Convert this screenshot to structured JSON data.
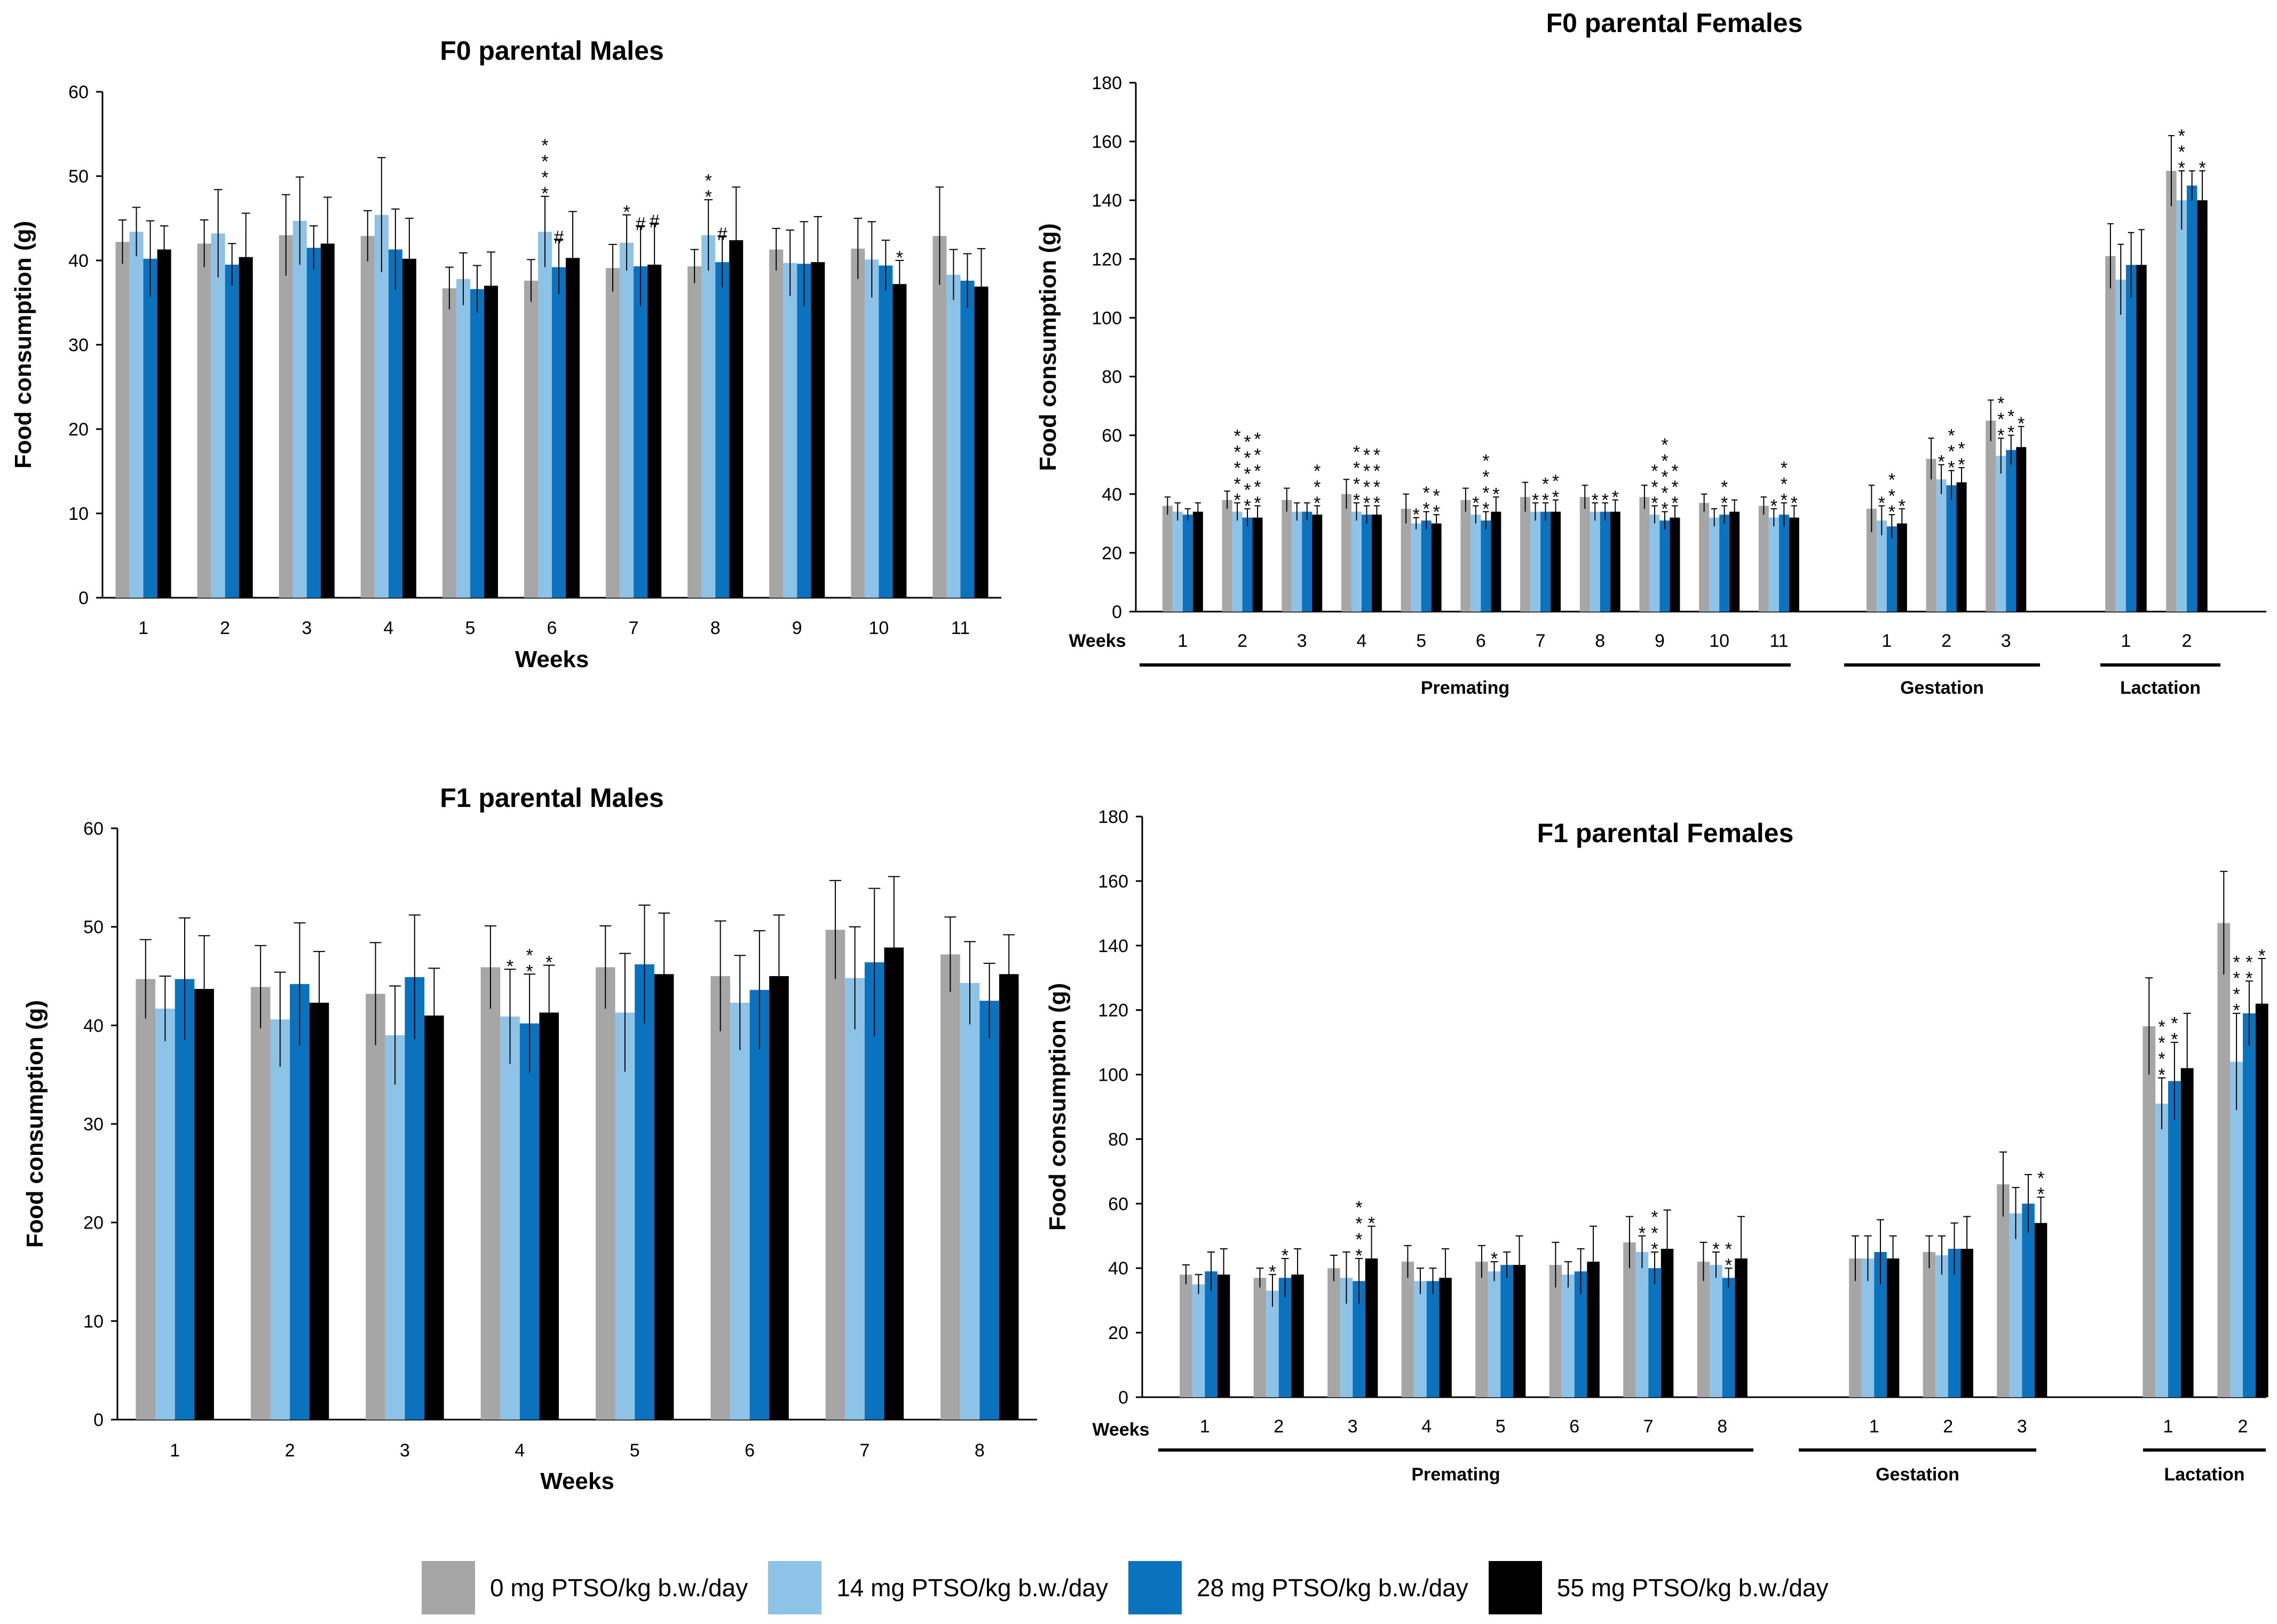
{
  "legend": [
    {
      "label": "0 mg PTSO/kg b.w./day",
      "color": "#A6A6A6"
    },
    {
      "label": "14 mg PTSO/kg b.w./day",
      "color": "#8EC3E8"
    },
    {
      "label": "28 mg PTSO/kg b.w./day",
      "color": "#0B73BD"
    },
    {
      "label": "55 mg PTSO/kg b.w./day",
      "color": "#000000"
    }
  ],
  "chart_data": [
    {
      "type": "bar",
      "title": "F0 parental Males",
      "ylabel": "Food consumption (g)",
      "xlabel": "Weeks",
      "ylim": [
        0,
        60
      ],
      "yticks": [
        0,
        10,
        20,
        30,
        40,
        50,
        60
      ],
      "categories": [
        "1",
        "2",
        "3",
        "4",
        "5",
        "6",
        "7",
        "8",
        "9",
        "10",
        "11"
      ],
      "series": [
        {
          "values": [
            42.2,
            42.0,
            43.0,
            42.9,
            36.7,
            37.6,
            39.1,
            39.3,
            41.3,
            41.4,
            42.9
          ],
          "errors": [
            2.6,
            2.8,
            4.8,
            3.0,
            2.5,
            2.5,
            2.8,
            2.0,
            2.5,
            3.6,
            5.8
          ]
        },
        {
          "values": [
            43.4,
            43.2,
            44.7,
            45.4,
            37.8,
            43.4,
            42.1,
            43.0,
            39.7,
            40.1,
            38.3
          ],
          "errors": [
            2.9,
            5.2,
            5.2,
            6.8,
            3.1,
            4.2,
            3.3,
            4.2,
            3.9,
            4.5,
            3.0
          ]
        },
        {
          "values": [
            40.2,
            39.5,
            41.5,
            41.3,
            36.6,
            39.2,
            39.3,
            39.8,
            39.6,
            39.4,
            37.6
          ],
          "errors": [
            4.5,
            2.5,
            2.6,
            4.8,
            2.8,
            3.2,
            4.7,
            3.0,
            5.0,
            3.0,
            3.2
          ]
        },
        {
          "values": [
            41.3,
            40.4,
            42.0,
            40.2,
            37.0,
            40.3,
            39.5,
            42.4,
            39.8,
            37.2,
            36.9
          ],
          "errors": [
            2.8,
            5.2,
            5.5,
            4.8,
            4.0,
            5.5,
            4.8,
            6.3,
            5.4,
            2.8,
            4.5
          ]
        }
      ],
      "annotations": [
        {
          "category": "6",
          "series": 1,
          "marks": [
            "*",
            "*",
            "*",
            "*"
          ]
        },
        {
          "category": "6",
          "series": 2,
          "marks": [
            "#"
          ]
        },
        {
          "category": "7",
          "series": 1,
          "marks": [
            "*"
          ]
        },
        {
          "category": "7",
          "series": 2,
          "marks": [
            "#"
          ]
        },
        {
          "category": "7",
          "series": 3,
          "marks": [
            "#"
          ]
        },
        {
          "category": "8",
          "series": 1,
          "marks": [
            "*",
            "*"
          ]
        },
        {
          "category": "8",
          "series": 2,
          "marks": [
            "#"
          ]
        },
        {
          "category": "10",
          "series": 3,
          "marks": [
            "*"
          ]
        }
      ]
    },
    {
      "type": "bar",
      "title": "F0 parental Females",
      "ylabel": "Food consumption (g)",
      "ylim": [
        0,
        180
      ],
      "yticks": [
        0,
        20,
        40,
        60,
        80,
        100,
        120,
        140,
        160,
        180
      ],
      "weeks_label": "Weeks",
      "groups": [
        {
          "label": "Premating",
          "categories": [
            "1",
            "2",
            "3",
            "4",
            "5",
            "6",
            "7",
            "8",
            "9",
            "10",
            "11"
          ]
        },
        {
          "label": "Gestation",
          "categories": [
            "1",
            "2",
            "3"
          ]
        },
        {
          "label": "Lactation",
          "categories": [
            "1",
            "2"
          ]
        }
      ],
      "series": [
        {
          "values": [
            36,
            38,
            38,
            40,
            35,
            38,
            39,
            39,
            39,
            37,
            36,
            35,
            52,
            65,
            121,
            150
          ],
          "errors": [
            3,
            3,
            4,
            5,
            5,
            4,
            5,
            4,
            4,
            3,
            3,
            8,
            7,
            7,
            11,
            12
          ]
        },
        {
          "values": [
            34,
            34,
            34,
            34,
            30,
            33,
            34,
            34,
            33,
            32,
            32,
            31,
            45,
            53,
            113,
            140
          ],
          "errors": [
            3,
            3,
            3,
            3,
            2,
            3,
            3,
            3,
            3,
            3,
            3,
            5,
            5,
            6,
            12,
            10
          ]
        },
        {
          "values": [
            33,
            32,
            34,
            33,
            31,
            31,
            34,
            34,
            31,
            33,
            33,
            29,
            43,
            55,
            118,
            145
          ],
          "errors": [
            2,
            3,
            3,
            3,
            3,
            3,
            3,
            3,
            3,
            3,
            4,
            4,
            5,
            5,
            11,
            5
          ]
        },
        {
          "values": [
            34,
            32,
            33,
            33,
            30,
            34,
            34,
            34,
            32,
            34,
            32,
            30,
            44,
            56,
            118,
            140
          ],
          "errors": [
            3,
            4,
            3,
            3,
            3,
            5,
            4,
            4,
            4,
            4,
            4,
            5,
            5,
            7,
            12,
            10
          ]
        }
      ],
      "annotations": [
        {
          "index": 1,
          "series": 1,
          "marks": [
            "*",
            "*",
            "*",
            "*",
            "*"
          ]
        },
        {
          "index": 1,
          "series": 2,
          "marks": [
            "*",
            "*",
            "*",
            "*",
            "*"
          ]
        },
        {
          "index": 1,
          "series": 3,
          "marks": [
            "*",
            "*",
            "*",
            "*",
            "*"
          ]
        },
        {
          "index": 2,
          "series": 3,
          "marks": [
            "*",
            "*",
            "*"
          ]
        },
        {
          "index": 3,
          "series": 1,
          "marks": [
            "*",
            "*",
            "*",
            "*"
          ]
        },
        {
          "index": 3,
          "series": 2,
          "marks": [
            "*",
            "*",
            "*",
            "*"
          ]
        },
        {
          "index": 3,
          "series": 3,
          "marks": [
            "*",
            "*",
            "*",
            "*"
          ]
        },
        {
          "index": 4,
          "series": 1,
          "marks": [
            "*"
          ]
        },
        {
          "index": 4,
          "series": 2,
          "marks": [
            "*",
            "*"
          ]
        },
        {
          "index": 4,
          "series": 3,
          "marks": [
            "*",
            "*"
          ]
        },
        {
          "index": 5,
          "series": 1,
          "marks": [
            "*"
          ]
        },
        {
          "index": 5,
          "series": 2,
          "marks": [
            "*",
            "*",
            "*",
            "*"
          ]
        },
        {
          "index": 5,
          "series": 3,
          "marks": [
            "*"
          ]
        },
        {
          "index": 6,
          "series": 1,
          "marks": [
            "*"
          ]
        },
        {
          "index": 6,
          "series": 2,
          "marks": [
            "*",
            "*"
          ]
        },
        {
          "index": 6,
          "series": 3,
          "marks": [
            "*",
            "*"
          ]
        },
        {
          "index": 7,
          "series": 1,
          "marks": [
            "*"
          ]
        },
        {
          "index": 7,
          "series": 2,
          "marks": [
            "*"
          ]
        },
        {
          "index": 7,
          "series": 3,
          "marks": [
            "*"
          ]
        },
        {
          "index": 8,
          "series": 1,
          "marks": [
            "*",
            "*",
            "*"
          ]
        },
        {
          "index": 8,
          "series": 2,
          "marks": [
            "*",
            "*",
            "*",
            "*",
            "*"
          ]
        },
        {
          "index": 8,
          "series": 3,
          "marks": [
            "*",
            "*",
            "*"
          ]
        },
        {
          "index": 9,
          "series": 2,
          "marks": [
            "*",
            "*"
          ]
        },
        {
          "index": 10,
          "series": 1,
          "marks": [
            "*"
          ]
        },
        {
          "index": 10,
          "series": 2,
          "marks": [
            "*",
            "*",
            "*"
          ]
        },
        {
          "index": 10,
          "series": 3,
          "marks": [
            "*"
          ]
        },
        {
          "index": 11,
          "series": 1,
          "marks": [
            "*"
          ]
        },
        {
          "index": 11,
          "series": 2,
          "marks": [
            "*",
            "*",
            "*"
          ]
        },
        {
          "index": 11,
          "series": 3,
          "marks": [
            "*"
          ]
        },
        {
          "index": 12,
          "series": 1,
          "marks": [
            "*"
          ]
        },
        {
          "index": 12,
          "series": 2,
          "marks": [
            "*",
            "*",
            "*"
          ]
        },
        {
          "index": 12,
          "series": 3,
          "marks": [
            "*",
            "*"
          ]
        },
        {
          "index": 13,
          "series": 1,
          "marks": [
            "*",
            "*",
            "*"
          ]
        },
        {
          "index": 13,
          "series": 2,
          "marks": [
            "*",
            "*"
          ]
        },
        {
          "index": 13,
          "series": 3,
          "marks": [
            "*"
          ]
        },
        {
          "index": 15,
          "series": 1,
          "marks": [
            "*",
            "*",
            "*"
          ]
        },
        {
          "index": 15,
          "series": 3,
          "marks": [
            "*"
          ]
        }
      ]
    },
    {
      "type": "bar",
      "title": "F1 parental Males",
      "ylabel": "Food consumption (g)",
      "xlabel": "Weeks",
      "ylim": [
        0,
        60
      ],
      "yticks": [
        0,
        10,
        20,
        30,
        40,
        50,
        60
      ],
      "categories": [
        "1",
        "2",
        "3",
        "4",
        "5",
        "6",
        "7",
        "8"
      ],
      "series": [
        {
          "values": [
            44.7,
            43.9,
            43.2,
            45.9,
            45.9,
            45.0,
            49.7,
            47.2
          ],
          "errors": [
            4.0,
            4.2,
            5.2,
            4.2,
            4.2,
            5.6,
            5.0,
            3.8
          ]
        },
        {
          "values": [
            41.7,
            40.6,
            39.0,
            40.9,
            41.3,
            42.3,
            44.8,
            44.3
          ],
          "errors": [
            3.3,
            4.8,
            5.0,
            4.8,
            6.0,
            4.8,
            5.2,
            4.2
          ]
        },
        {
          "values": [
            44.7,
            44.2,
            44.9,
            40.2,
            46.2,
            43.6,
            46.4,
            42.5
          ],
          "errors": [
            6.2,
            6.2,
            6.3,
            5.0,
            6.0,
            6.0,
            7.5,
            3.8
          ]
        },
        {
          "values": [
            43.7,
            42.3,
            41.0,
            41.3,
            45.2,
            45.0,
            47.9,
            45.2
          ],
          "errors": [
            5.4,
            5.2,
            4.8,
            4.8,
            6.2,
            6.2,
            7.2,
            4.0
          ]
        }
      ],
      "annotations": [
        {
          "category": "4",
          "series": 1,
          "marks": [
            "*"
          ]
        },
        {
          "category": "4",
          "series": 2,
          "marks": [
            "*",
            "*"
          ]
        },
        {
          "category": "4",
          "series": 3,
          "marks": [
            "*"
          ]
        }
      ]
    },
    {
      "type": "bar",
      "title": "F1 parental Females",
      "ylabel": "Food consumption (g)",
      "ylim": [
        0,
        180
      ],
      "yticks": [
        0,
        20,
        40,
        60,
        80,
        100,
        120,
        140,
        160,
        180
      ],
      "weeks_label": "Weeks",
      "groups": [
        {
          "label": "Premating",
          "categories": [
            "1",
            "2",
            "3",
            "4",
            "5",
            "6",
            "7",
            "8"
          ]
        },
        {
          "label": "Gestation",
          "categories": [
            "1",
            "2",
            "3"
          ]
        },
        {
          "label": "Lactation",
          "categories": [
            "1",
            "2"
          ]
        }
      ],
      "series": [
        {
          "values": [
            38,
            37,
            40,
            42,
            42,
            41,
            48,
            42,
            43,
            45,
            66,
            115,
            147
          ],
          "errors": [
            3,
            3,
            4,
            5,
            5,
            7,
            8,
            6,
            7,
            5,
            10,
            15,
            16
          ]
        },
        {
          "values": [
            35,
            33,
            37,
            36,
            39,
            38,
            45,
            41,
            43,
            44,
            57,
            91,
            104
          ],
          "errors": [
            3,
            5,
            8,
            4,
            3,
            4,
            5,
            4,
            7,
            6,
            8,
            8,
            15
          ]
        },
        {
          "values": [
            39,
            37,
            36,
            36,
            41,
            39,
            40,
            37,
            45,
            46,
            60,
            98,
            119
          ],
          "errors": [
            6,
            6,
            7,
            4,
            4,
            7,
            5,
            3,
            10,
            8,
            9,
            12,
            10
          ]
        },
        {
          "values": [
            38,
            38,
            43,
            37,
            41,
            42,
            46,
            43,
            43,
            46,
            54,
            102,
            122
          ],
          "errors": [
            8,
            8,
            10,
            9,
            9,
            11,
            12,
            13,
            7,
            10,
            8,
            17,
            14
          ]
        }
      ],
      "annotations": [
        {
          "index": 1,
          "series": 1,
          "marks": [
            "*"
          ]
        },
        {
          "index": 1,
          "series": 2,
          "marks": [
            "*"
          ]
        },
        {
          "index": 2,
          "series": 2,
          "marks": [
            "*",
            "*",
            "*",
            "*"
          ]
        },
        {
          "index": 2,
          "series": 3,
          "marks": [
            "*"
          ]
        },
        {
          "index": 4,
          "series": 1,
          "marks": [
            "*"
          ]
        },
        {
          "index": 6,
          "series": 2,
          "marks": [
            "*",
            "*",
            "*"
          ]
        },
        {
          "index": 6,
          "series": 1,
          "marks": [
            "*"
          ]
        },
        {
          "index": 7,
          "series": 1,
          "marks": [
            "*"
          ]
        },
        {
          "index": 7,
          "series": 2,
          "marks": [
            "*",
            "*"
          ]
        },
        {
          "index": 10,
          "series": 3,
          "marks": [
            "*",
            "*"
          ]
        },
        {
          "index": 11,
          "series": 1,
          "marks": [
            "*",
            "*",
            "*",
            "*"
          ]
        },
        {
          "index": 11,
          "series": 2,
          "marks": [
            "*",
            "*"
          ]
        },
        {
          "index": 12,
          "series": 1,
          "marks": [
            "*",
            "*",
            "*",
            "*"
          ]
        },
        {
          "index": 12,
          "series": 2,
          "marks": [
            "*",
            "*"
          ]
        },
        {
          "index": 12,
          "series": 3,
          "marks": [
            "*"
          ]
        }
      ]
    }
  ]
}
